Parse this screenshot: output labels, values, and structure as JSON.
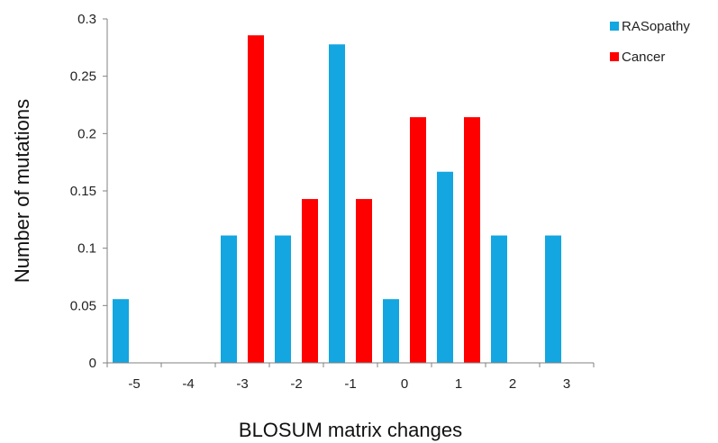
{
  "chart_data": {
    "type": "bar",
    "title": "",
    "xlabel": "BLOSUM matrix changes",
    "ylabel": "Number of mutations",
    "categories": [
      "-5",
      "-4",
      "-3",
      "-2",
      "-1",
      "0",
      "1",
      "2",
      "3"
    ],
    "series": [
      {
        "name": "RASopathy",
        "color": "#13A6E0",
        "values": [
          0.0556,
          0,
          0.1111,
          0.1111,
          0.2778,
          0.0556,
          0.1667,
          0.1111,
          0.1111
        ]
      },
      {
        "name": "Cancer",
        "color": "#FF0000",
        "values": [
          0,
          0,
          0.2857,
          0.1429,
          0.1429,
          0.2143,
          0.2143,
          0,
          0
        ]
      }
    ],
    "ylim": [
      0,
      0.3
    ],
    "yticks": [
      "0",
      "0.05",
      "0.1",
      "0.15",
      "0.2",
      "0.25",
      "0.3"
    ],
    "grid": false,
    "legend_position": "top-right"
  }
}
